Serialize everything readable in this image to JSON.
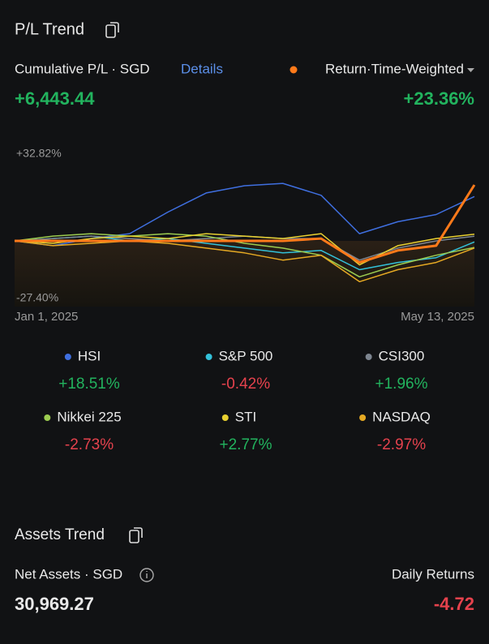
{
  "header": {
    "title": "P/L Trend"
  },
  "summary": {
    "label": "Cumulative P/L · SGD",
    "details_link": "Details",
    "value": "+6,443.44"
  },
  "chart_data": {
    "type": "line",
    "x_labels": [
      "Jan 1, 2025",
      "May 13, 2025"
    ],
    "ylim": [
      -27.4,
      32.82
    ],
    "yticks": [
      {
        "value": 32.82,
        "label": "+32.82%"
      },
      {
        "value": -27.4,
        "label": "-27.40%"
      }
    ],
    "series": [
      {
        "name": "Return·Time-Weighted",
        "color": "#ff7a1a",
        "change_label": "+23.36%",
        "values": [
          0,
          0,
          0,
          0,
          0,
          0,
          0,
          0,
          1,
          -9,
          -4,
          -2,
          23.36
        ]
      },
      {
        "name": "HSI",
        "color": "#3f6fe0",
        "change_label": "+18.51%",
        "values": [
          0,
          -2,
          1,
          3,
          12,
          20,
          23,
          24,
          19,
          3,
          8,
          11,
          18.51
        ]
      },
      {
        "name": "S&P 500",
        "color": "#33c1d9",
        "change_label": "-0.42%",
        "values": [
          0,
          1,
          2,
          0,
          1,
          -1,
          -3,
          -5,
          -4,
          -12,
          -9,
          -7,
          -0.42
        ]
      },
      {
        "name": "CSI300",
        "color": "#7d8590",
        "change_label": "+1.96%",
        "values": [
          0,
          1,
          2,
          1,
          0,
          1,
          2,
          1,
          1,
          -8,
          -3,
          0,
          1.96
        ]
      },
      {
        "name": "Nikkei 225",
        "color": "#9ccc50",
        "change_label": "-2.73%",
        "values": [
          0,
          2,
          3,
          2,
          3,
          2,
          -1,
          -3,
          -6,
          -15,
          -10,
          -6,
          -2.73
        ]
      },
      {
        "name": "STI",
        "color": "#e8d030",
        "change_label": "+2.77%",
        "values": [
          0,
          -1,
          1,
          2,
          1,
          3,
          2,
          1,
          3,
          -10,
          -2,
          1,
          2.77
        ]
      },
      {
        "name": "NASDAQ",
        "color": "#e5a923",
        "change_label": "-2.97%",
        "values": [
          0,
          -2,
          -1,
          0,
          -1,
          -3,
          -5,
          -8,
          -6,
          -17,
          -12,
          -9,
          -2.97
        ]
      }
    ]
  },
  "assets": {
    "title": "Assets Trend",
    "label": "Net Assets · SGD",
    "daily_label": "Daily Returns",
    "value": "30,969.27",
    "daily_value": "-4.72"
  }
}
